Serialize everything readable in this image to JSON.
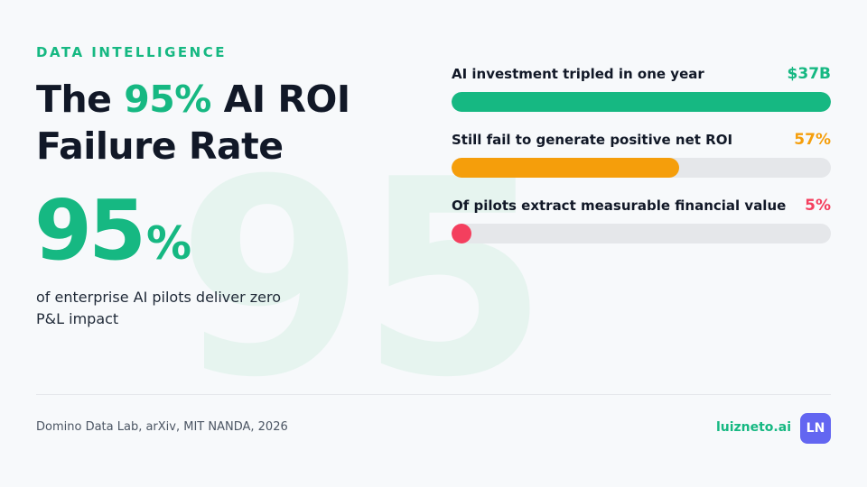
{
  "eyebrow": "DATA INTELLIGENCE",
  "title": {
    "prefix": "The ",
    "highlight": "95%",
    "suffix": " AI ROI",
    "line2": "Failure Rate"
  },
  "watermark": "95",
  "hero": {
    "number": "95",
    "unit": "%",
    "caption": "of enterprise AI pilots deliver zero P&L impact"
  },
  "bars": [
    {
      "label": "AI investment tripled in one year",
      "value": "$37B",
      "fraction": 1.0,
      "color": "#16b882"
    },
    {
      "label": "Still fail to generate positive net ROI",
      "value": "57%",
      "fraction": 0.6,
      "color": "#f59e0b"
    },
    {
      "label": "Of pilots extract measurable financial value",
      "value": "5%",
      "fraction": 0.05,
      "color": "#f43f5e"
    }
  ],
  "footer": {
    "source": "Domino Data Lab, arXiv, MIT NANDA, 2026",
    "brand": "luizneto.ai",
    "avatar": "LN"
  },
  "colors": {
    "accent": "#16b882",
    "background": "#f7f9fb",
    "text": "#111827",
    "avatar": "#6366f1"
  }
}
